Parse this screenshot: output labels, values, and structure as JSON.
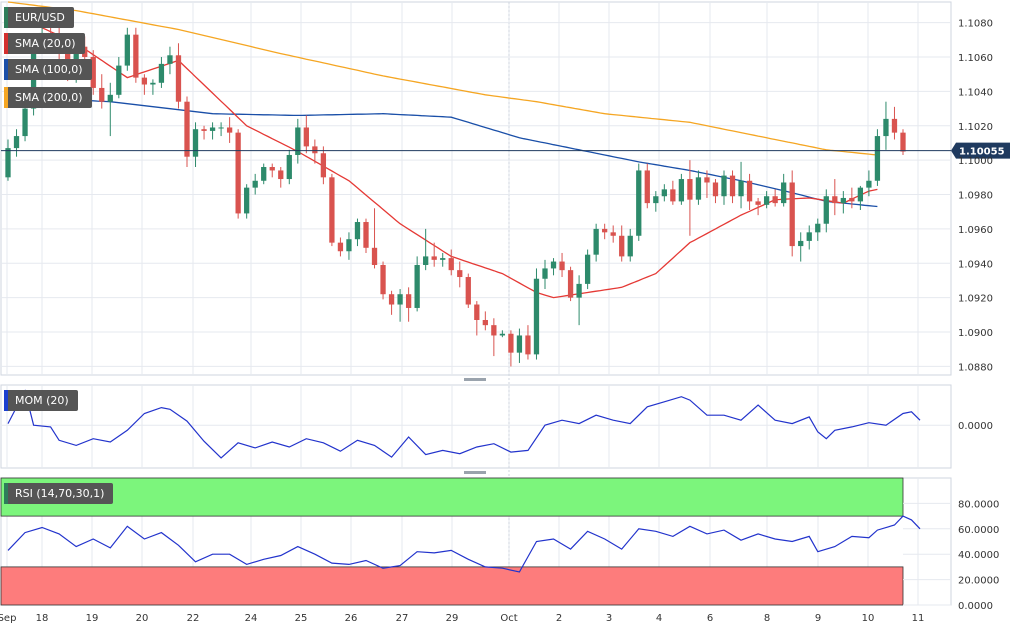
{
  "chart_data": {
    "type": "candlestick",
    "symbol": "EUR/USD",
    "current_price_label": "1.10055",
    "current_price": 1.10055,
    "ylim": [
      1.0875,
      1.1092
    ],
    "y_ticks": [
      "1.1080",
      "1.1060",
      "1.1040",
      "1.1020",
      "1.1000",
      "1.0980",
      "1.0960",
      "1.0940",
      "1.0920",
      "1.0900",
      "1.0880"
    ],
    "x_ticks": [
      "Sep",
      "18",
      "19",
      "20",
      "22",
      "24",
      "25",
      "26",
      "27",
      "29",
      "Oct",
      "2",
      "3",
      "4",
      "6",
      "8",
      "9",
      "10",
      "11"
    ],
    "grid": true,
    "candles": [
      [
        1.099,
        1.1012,
        1.0988,
        1.1007
      ],
      [
        1.1007,
        1.1018,
        1.1002,
        1.1014
      ],
      [
        1.1014,
        1.1034,
        1.1011,
        1.103
      ],
      [
        1.103,
        1.1071,
        1.1026,
        1.1067
      ],
      [
        1.1067,
        1.1081,
        1.1062,
        1.1074
      ],
      [
        1.1074,
        1.1083,
        1.1063,
        1.1068
      ],
      [
        1.1068,
        1.108,
        1.1058,
        1.1062
      ],
      [
        1.1062,
        1.1067,
        1.1046,
        1.1049
      ],
      [
        1.1049,
        1.1069,
        1.1045,
        1.1066
      ],
      [
        1.1066,
        1.1072,
        1.1055,
        1.106
      ],
      [
        1.106,
        1.1064,
        1.1038,
        1.1042
      ],
      [
        1.1042,
        1.105,
        1.103,
        1.1034
      ],
      [
        1.1034,
        1.1045,
        1.1014,
        1.1038
      ],
      [
        1.1038,
        1.106,
        1.1036,
        1.1055
      ],
      [
        1.1055,
        1.1077,
        1.1052,
        1.1073
      ],
      [
        1.1073,
        1.1077,
        1.1045,
        1.1048
      ],
      [
        1.1048,
        1.105,
        1.1038,
        1.1044
      ],
      [
        1.1044,
        1.1047,
        1.1038,
        1.1045
      ],
      [
        1.1045,
        1.106,
        1.1042,
        1.1056
      ],
      [
        1.1056,
        1.1066,
        1.105,
        1.1061
      ],
      [
        1.1061,
        1.1068,
        1.103,
        1.1034
      ],
      [
        1.1034,
        1.1037,
        1.0996,
        1.1002
      ],
      [
        1.1002,
        1.1022,
        1.0996,
        1.1018
      ],
      [
        1.1018,
        1.102,
        1.1012,
        1.1017
      ],
      [
        1.1017,
        1.1022,
        1.1012,
        1.1019
      ],
      [
        1.1019,
        1.1022,
        1.1014,
        1.1019
      ],
      [
        1.1019,
        1.1025,
        1.101,
        1.1016
      ],
      [
        1.1016,
        1.1018,
        1.0966,
        1.0969
      ],
      [
        1.0969,
        1.0986,
        1.0966,
        1.0984
      ],
      [
        1.0984,
        1.0992,
        1.098,
        1.0988
      ],
      [
        1.0988,
        1.0998,
        1.0986,
        1.0996
      ],
      [
        1.0996,
        1.0998,
        1.099,
        1.0994
      ],
      [
        1.0994,
        1.0996,
        1.0984,
        1.0989
      ],
      [
        1.0989,
        1.1006,
        1.0986,
        1.1003
      ],
      [
        1.1003,
        1.1024,
        1.0998,
        1.1019
      ],
      [
        1.1019,
        1.1026,
        1.1004,
        1.1008
      ],
      [
        1.1008,
        1.1012,
        1.0998,
        1.1004
      ],
      [
        1.1004,
        1.1008,
        1.0986,
        1.099
      ],
      [
        1.099,
        1.0992,
        1.095,
        1.0952
      ],
      [
        1.0952,
        1.0955,
        1.0944,
        1.0947
      ],
      [
        1.0947,
        1.0958,
        1.0942,
        1.0954
      ],
      [
        1.0954,
        1.0966,
        1.095,
        1.0964
      ],
      [
        1.0964,
        1.0966,
        1.0946,
        1.0949
      ],
      [
        1.0949,
        1.0972,
        1.0937,
        1.0939
      ],
      [
        1.0939,
        1.0941,
        1.0919,
        1.0922
      ],
      [
        1.0922,
        1.0924,
        1.091,
        1.0916
      ],
      [
        1.0916,
        1.0925,
        1.0906,
        1.0922
      ],
      [
        1.0922,
        1.0926,
        1.0906,
        1.0914
      ],
      [
        1.0914,
        1.0944,
        1.0912,
        1.0939
      ],
      [
        1.0939,
        1.096,
        1.0936,
        1.0944
      ],
      [
        1.0944,
        1.0952,
        1.0938,
        1.0942
      ],
      [
        1.0942,
        1.0946,
        1.0938,
        1.0943
      ],
      [
        1.0943,
        1.0948,
        1.0933,
        1.0936
      ],
      [
        1.0936,
        1.0941,
        1.0926,
        1.0932
      ],
      [
        1.0932,
        1.0934,
        1.0914,
        1.0916
      ],
      [
        1.0916,
        1.0918,
        1.0898,
        1.0907
      ],
      [
        1.0907,
        1.0912,
        1.0901,
        1.0904
      ],
      [
        1.0904,
        1.0908,
        1.0886,
        1.0898
      ],
      [
        1.0898,
        1.0901,
        1.0897,
        1.0899
      ],
      [
        1.0899,
        1.0901,
        1.088,
        1.0888
      ],
      [
        1.0888,
        1.0902,
        1.0882,
        1.0898
      ],
      [
        1.0898,
        1.0904,
        1.0884,
        1.0887
      ],
      [
        1.0887,
        1.0937,
        1.0884,
        1.0931
      ],
      [
        1.0931,
        1.0942,
        1.0925,
        1.0937
      ],
      [
        1.0937,
        1.0943,
        1.0933,
        1.0941
      ],
      [
        1.0941,
        1.0946,
        1.0932,
        1.0936
      ],
      [
        1.0936,
        1.0938,
        1.0918,
        1.092
      ],
      [
        1.092,
        1.0933,
        1.0904,
        1.0928
      ],
      [
        1.0928,
        1.0948,
        1.0925,
        1.0945
      ],
      [
        1.0945,
        1.0963,
        1.0941,
        1.096
      ],
      [
        1.096,
        1.0963,
        1.0954,
        1.0958
      ],
      [
        1.0958,
        1.0962,
        1.0952,
        1.0956
      ],
      [
        1.0956,
        1.0962,
        1.0941,
        1.0944
      ],
      [
        1.0944,
        1.096,
        1.0941,
        1.0956
      ],
      [
        1.0956,
        1.0998,
        1.0953,
        1.0994
      ],
      [
        1.0994,
        1.0998,
        1.0972,
        1.0975
      ],
      [
        1.0975,
        1.0982,
        1.097,
        1.0979
      ],
      [
        1.0979,
        1.0986,
        1.0976,
        1.0983
      ],
      [
        1.0983,
        1.0988,
        1.0974,
        1.0976
      ],
      [
        1.0976,
        1.0992,
        1.0974,
        1.0989
      ],
      [
        1.0989,
        1.1,
        1.0956,
        1.0977
      ],
      [
        1.0977,
        1.0994,
        1.0974,
        1.099
      ],
      [
        1.099,
        1.0994,
        1.0978,
        1.0987
      ],
      [
        1.0987,
        1.0989,
        1.0975,
        1.0979
      ],
      [
        1.0979,
        1.0994,
        1.0974,
        1.0991
      ],
      [
        1.0991,
        1.0994,
        1.0975,
        1.0979
      ],
      [
        1.0979,
        1.0999,
        1.0972,
        1.0988
      ],
      [
        1.0988,
        1.0992,
        1.0971,
        1.0976
      ],
      [
        1.0976,
        1.0978,
        1.0968,
        1.0974
      ],
      [
        1.0974,
        1.0982,
        1.0972,
        1.0979
      ],
      [
        1.0979,
        1.0983,
        1.0973,
        1.0975
      ],
      [
        1.0975,
        1.0992,
        1.0973,
        1.0987
      ],
      [
        1.0987,
        1.0994,
        1.0944,
        1.095
      ],
      [
        1.095,
        1.0958,
        1.0941,
        1.0953
      ],
      [
        1.0953,
        1.0962,
        1.0948,
        1.0958
      ],
      [
        1.0958,
        1.0966,
        1.0953,
        1.0963
      ],
      [
        1.0963,
        1.0983,
        1.0958,
        1.0979
      ],
      [
        1.0979,
        1.0989,
        1.0968,
        1.0975
      ],
      [
        1.0975,
        1.0982,
        1.0969,
        1.0978
      ],
      [
        1.0978,
        1.0984,
        1.0972,
        1.0976
      ],
      [
        1.0976,
        1.0985,
        1.0971,
        1.0984
      ],
      [
        1.0984,
        1.0994,
        1.0979,
        1.0988
      ],
      [
        1.0988,
        1.1018,
        1.0985,
        1.1014
      ],
      [
        1.1014,
        1.1034,
        1.1006,
        1.1024
      ],
      [
        1.1024,
        1.1031,
        1.1012,
        1.1016
      ],
      [
        1.1016,
        1.1018,
        1.1003,
        1.1005
      ]
    ],
    "sma20_anchors": [
      [
        0,
        1.1086
      ],
      [
        8,
        1.1068
      ],
      [
        14,
        1.1048
      ],
      [
        20,
        1.1058
      ],
      [
        28,
        1.102
      ],
      [
        34,
        1.1005
      ],
      [
        40,
        1.0988
      ],
      [
        46,
        1.0963
      ],
      [
        52,
        1.0944
      ],
      [
        58,
        1.0934
      ],
      [
        62,
        1.0923
      ],
      [
        64,
        1.092
      ],
      [
        68,
        1.0923
      ],
      [
        72,
        1.0926
      ],
      [
        76,
        1.0934
      ],
      [
        80,
        1.0952
      ],
      [
        86,
        1.0968
      ],
      [
        90,
        1.0977
      ],
      [
        94,
        1.0978
      ],
      [
        98,
        1.0975
      ],
      [
        101,
        1.0982
      ],
      [
        102,
        1.0983
      ]
    ],
    "sma100_anchors": [
      [
        0,
        1.1037
      ],
      [
        12,
        1.1034
      ],
      [
        24,
        1.1027
      ],
      [
        34,
        1.1026
      ],
      [
        44,
        1.1027
      ],
      [
        52,
        1.1025
      ],
      [
        60,
        1.1013
      ],
      [
        68,
        1.1005
      ],
      [
        74,
        1.0999
      ],
      [
        80,
        1.0994
      ],
      [
        86,
        1.0988
      ],
      [
        92,
        1.0981
      ],
      [
        96,
        1.0976
      ],
      [
        102,
        1.0973
      ]
    ],
    "sma200_anchors": [
      [
        0,
        1.1092
      ],
      [
        8,
        1.1087
      ],
      [
        20,
        1.1076
      ],
      [
        32,
        1.1062
      ],
      [
        44,
        1.1049
      ],
      [
        56,
        1.1038
      ],
      [
        62,
        1.1034
      ],
      [
        70,
        1.1027
      ],
      [
        80,
        1.1022
      ],
      [
        90,
        1.1012
      ],
      [
        96,
        1.1006
      ],
      [
        102,
        1.1003
      ]
    ],
    "mom": {
      "label": "MOM (20)",
      "ylim": [
        -0.0051,
        0.0048
      ],
      "tick_label": "0.0000",
      "anchors": [
        [
          0,
          0.0002
        ],
        [
          2,
          0.0041
        ],
        [
          3,
          0.0
        ],
        [
          5,
          -0.0002
        ],
        [
          6,
          -0.0018
        ],
        [
          8,
          -0.0024
        ],
        [
          10,
          -0.0016
        ],
        [
          12,
          -0.002
        ],
        [
          14,
          -0.0006
        ],
        [
          16,
          0.0014
        ],
        [
          18,
          0.0021
        ],
        [
          19,
          0.0019
        ],
        [
          21,
          0.0005
        ],
        [
          23,
          -0.0019
        ],
        [
          25,
          -0.0039
        ],
        [
          27,
          -0.0021
        ],
        [
          29,
          -0.0027
        ],
        [
          31,
          -0.002
        ],
        [
          33,
          -0.0026
        ],
        [
          35,
          -0.0016
        ],
        [
          37,
          -0.0021
        ],
        [
          39,
          -0.0031
        ],
        [
          41,
          -0.0018
        ],
        [
          43,
          -0.0024
        ],
        [
          45,
          -0.0038
        ],
        [
          47,
          -0.0014
        ],
        [
          49,
          -0.0035
        ],
        [
          51,
          -0.003
        ],
        [
          53,
          -0.0034
        ],
        [
          55,
          -0.0026
        ],
        [
          57,
          -0.0022
        ],
        [
          59,
          -0.0032
        ],
        [
          61,
          -0.003
        ],
        [
          63,
          0.0
        ],
        [
          65,
          0.0006
        ],
        [
          67,
          0.0002
        ],
        [
          69,
          0.0012
        ],
        [
          71,
          0.0006
        ],
        [
          73,
          0.0002
        ],
        [
          75,
          0.0022
        ],
        [
          77,
          0.0028
        ],
        [
          79,
          0.0034
        ],
        [
          80,
          0.003
        ],
        [
          82,
          0.0012
        ],
        [
          84,
          0.0012
        ],
        [
          86,
          0.0006
        ],
        [
          88,
          0.0024
        ],
        [
          90,
          0.0006
        ],
        [
          92,
          0.0002
        ],
        [
          94,
          0.001
        ],
        [
          95,
          -0.0008
        ],
        [
          96,
          -0.0016
        ],
        [
          97,
          -0.0006
        ],
        [
          99,
          -0.0002
        ],
        [
          101,
          0.0003
        ],
        [
          103,
          0.0
        ],
        [
          105,
          0.0014
        ],
        [
          106,
          0.0016
        ],
        [
          107,
          0.0006
        ]
      ]
    },
    "rsi": {
      "label": "RSI (14,70,30,1)",
      "ylim": [
        0,
        100
      ],
      "overbought": 70,
      "oversold": 30,
      "tick_labels": [
        "80.0000",
        "60.0000",
        "40.0000",
        "20.0000",
        "0.0000"
      ],
      "anchors": [
        [
          0,
          43
        ],
        [
          2,
          57
        ],
        [
          4,
          61
        ],
        [
          6,
          56
        ],
        [
          8,
          46
        ],
        [
          10,
          52
        ],
        [
          12,
          45
        ],
        [
          14,
          62
        ],
        [
          16,
          52
        ],
        [
          18,
          57
        ],
        [
          20,
          47
        ],
        [
          22,
          34
        ],
        [
          24,
          40
        ],
        [
          26,
          40
        ],
        [
          28,
          32
        ],
        [
          30,
          36
        ],
        [
          32,
          39
        ],
        [
          34,
          46
        ],
        [
          36,
          40
        ],
        [
          38,
          33
        ],
        [
          40,
          32
        ],
        [
          42,
          35
        ],
        [
          44,
          29
        ],
        [
          46,
          31
        ],
        [
          48,
          42
        ],
        [
          50,
          41
        ],
        [
          52,
          43
        ],
        [
          54,
          36
        ],
        [
          56,
          30
        ],
        [
          58,
          29
        ],
        [
          60,
          26
        ],
        [
          62,
          50
        ],
        [
          64,
          52
        ],
        [
          66,
          44
        ],
        [
          68,
          58
        ],
        [
          70,
          52
        ],
        [
          72,
          44
        ],
        [
          74,
          60
        ],
        [
          76,
          58
        ],
        [
          78,
          54
        ],
        [
          80,
          62
        ],
        [
          82,
          56
        ],
        [
          84,
          59
        ],
        [
          86,
          51
        ],
        [
          88,
          56
        ],
        [
          90,
          52
        ],
        [
          92,
          50
        ],
        [
          94,
          54
        ],
        [
          95,
          42
        ],
        [
          97,
          46
        ],
        [
          99,
          54
        ],
        [
          101,
          53
        ],
        [
          102,
          59
        ],
        [
          104,
          63
        ],
        [
          105,
          70
        ],
        [
          106,
          67
        ],
        [
          107,
          60
        ]
      ]
    }
  },
  "legends": [
    {
      "label": "EUR/USD",
      "color": "#2e7d5a"
    },
    {
      "label": "SMA (20,0)",
      "color": "#d32f2f"
    },
    {
      "label": "SMA (100,0)",
      "color": "#1a4fa8"
    },
    {
      "label": "SMA (200,0)",
      "color": "#f5a623"
    }
  ],
  "colors": {
    "up": "#2d8a6b",
    "down": "#d9534f",
    "rsi_over": "#7cf57c",
    "rsi_under": "#fd7c7c"
  }
}
